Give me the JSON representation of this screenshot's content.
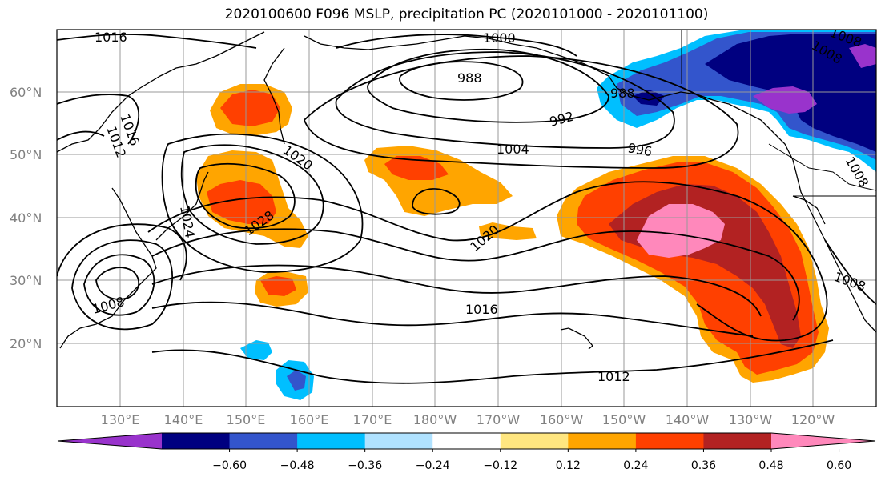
{
  "title": "2020100600 F096 MSLP, precipitation PC (2020101000 - 2020101100)",
  "lat_labels": [
    "60°N",
    "50°N",
    "40°N",
    "30°N",
    "20°N"
  ],
  "lon_labels": [
    "130°E",
    "140°E",
    "150°E",
    "160°E",
    "170°E",
    "180°W",
    "170°W",
    "160°W",
    "150°W",
    "140°W",
    "130°W",
    "120°W"
  ],
  "contour_labels": [
    "1016",
    "1016",
    "1012",
    "1000",
    "988",
    "988",
    "992",
    "1004",
    "996",
    "1020",
    "1028",
    "1024",
    "1008",
    "1020",
    "1016",
    "1012",
    "1008",
    "1008",
    "1008",
    "1008"
  ],
  "colorbar": {
    "colors": [
      "#9933cc",
      "#000080",
      "#3355cc",
      "#00bfff",
      "#b0e2ff",
      "#ffffff",
      "#ffe680",
      "#ffa500",
      "#ff4000",
      "#b22222",
      "#ff88bb"
    ],
    "tick_labels": [
      "−0.60",
      "−0.48",
      "−0.36",
      "−0.24",
      "−0.12",
      "0.12",
      "0.24",
      "0.36",
      "0.48",
      "0.60"
    ]
  }
}
